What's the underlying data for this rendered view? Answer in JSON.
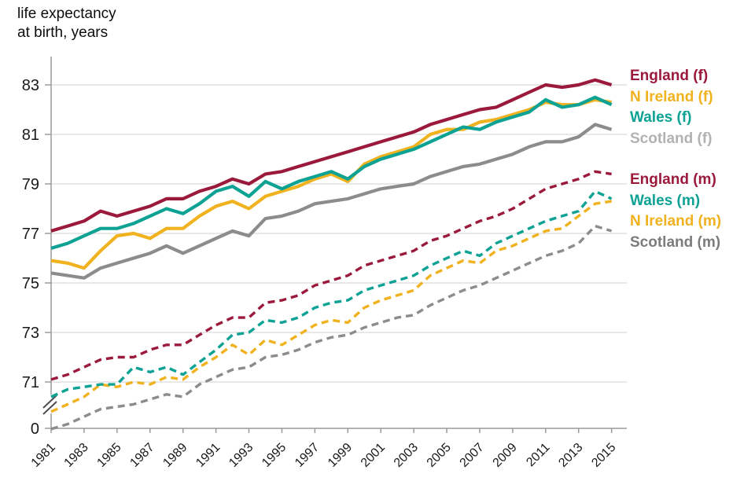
{
  "title": {
    "line1": "life expectancy",
    "line2": "at birth, years"
  },
  "colors": {
    "england": "#9B1A3C",
    "n_ireland": "#F0B21E",
    "wales": "#0DA294",
    "scotland_line": "#8C8C8C",
    "scotland_f_legend": "#B2B2B2",
    "scotland_m_legend": "#7C7C7C",
    "gridline": "#DBDBDB",
    "axis": "#9B9B9B",
    "text": "#1A1A1A",
    "background": "#FFFFFF"
  },
  "legend": {
    "female": [
      {
        "label": "England (f)",
        "color": "#9B1A3C"
      },
      {
        "label": "N Ireland (f)",
        "color": "#F0B21E"
      },
      {
        "label": "Wales (f)",
        "color": "#0DA294"
      },
      {
        "label": "Scotland (f)",
        "color": "#B2B2B2"
      }
    ],
    "male": [
      {
        "label": "England (m)",
        "color": "#9B1A3C"
      },
      {
        "label": "Wales (m)",
        "color": "#0DA294"
      },
      {
        "label": "N Ireland (m)",
        "color": "#F0B21E"
      },
      {
        "label": "Scotland (m)",
        "color": "#7C7C7C"
      }
    ]
  },
  "chart_data": {
    "type": "line",
    "title": "life expectancy at birth, years",
    "x": [
      1981,
      1982,
      1983,
      1984,
      1985,
      1986,
      1987,
      1988,
      1989,
      1990,
      1991,
      1992,
      1993,
      1994,
      1995,
      1996,
      1997,
      1998,
      1999,
      2000,
      2001,
      2002,
      2003,
      2004,
      2005,
      2006,
      2007,
      2008,
      2009,
      2010,
      2011,
      2012,
      2013,
      2014,
      2015
    ],
    "x_tick_labels": [
      "1981",
      "1983",
      "1985",
      "1987",
      "1989",
      "1991",
      "1993",
      "1995",
      "1997",
      "1999",
      "2001",
      "2003",
      "2005",
      "2007",
      "2009",
      "2011",
      "2013",
      "2015"
    ],
    "y_ticks": [
      83,
      81,
      79,
      77,
      75,
      73,
      71
    ],
    "y_origin_label": "0",
    "y_axis_break": true,
    "xlim": [
      1981,
      2015
    ],
    "ylim_displayed": [
      69.0,
      83.6
    ],
    "grid": "horizontal",
    "legend_position": "right",
    "series": [
      {
        "name": "Scotland (f)",
        "sex": "female",
        "style": "solid",
        "color": "#8C8C8C",
        "values": [
          75.4,
          75.3,
          75.2,
          75.6,
          75.8,
          76.0,
          76.2,
          76.5,
          76.2,
          76.5,
          76.8,
          77.1,
          76.9,
          77.6,
          77.7,
          77.9,
          78.2,
          78.3,
          78.4,
          78.6,
          78.8,
          78.9,
          79.0,
          79.3,
          79.5,
          79.7,
          79.8,
          80.0,
          80.2,
          80.5,
          80.7,
          80.7,
          80.9,
          81.4,
          81.2
        ]
      },
      {
        "name": "N Ireland (f)",
        "sex": "female",
        "style": "solid",
        "color": "#F0B21E",
        "values": [
          75.9,
          75.8,
          75.6,
          76.3,
          76.9,
          77.0,
          76.8,
          77.2,
          77.2,
          77.7,
          78.1,
          78.3,
          78.0,
          78.5,
          78.7,
          78.9,
          79.2,
          79.4,
          79.1,
          79.8,
          80.1,
          80.3,
          80.5,
          81.0,
          81.2,
          81.2,
          81.5,
          81.6,
          81.8,
          82.0,
          82.3,
          82.2,
          82.2,
          82.4,
          82.3
        ]
      },
      {
        "name": "Wales (f)",
        "sex": "female",
        "style": "solid",
        "color": "#0DA294",
        "values": [
          76.4,
          76.6,
          76.9,
          77.2,
          77.2,
          77.4,
          77.7,
          78.0,
          77.8,
          78.2,
          78.7,
          78.9,
          78.5,
          79.1,
          78.8,
          79.1,
          79.3,
          79.5,
          79.2,
          79.7,
          80.0,
          80.2,
          80.4,
          80.7,
          81.0,
          81.3,
          81.2,
          81.5,
          81.7,
          81.9,
          82.4,
          82.1,
          82.2,
          82.5,
          82.2
        ]
      },
      {
        "name": "England (f)",
        "sex": "female",
        "style": "solid",
        "color": "#9B1A3C",
        "values": [
          77.1,
          77.3,
          77.5,
          77.9,
          77.7,
          77.9,
          78.1,
          78.4,
          78.4,
          78.7,
          78.9,
          79.2,
          79.0,
          79.4,
          79.5,
          79.7,
          79.9,
          80.1,
          80.3,
          80.5,
          80.7,
          80.9,
          81.1,
          81.4,
          81.6,
          81.8,
          82.0,
          82.1,
          82.4,
          82.7,
          83.0,
          82.9,
          83.0,
          83.2,
          83.0
        ]
      },
      {
        "name": "Scotland (m)",
        "sex": "male",
        "style": "dashed",
        "color": "#8C8C8C",
        "values": [
          69.1,
          69.3,
          69.6,
          69.9,
          70.0,
          70.1,
          70.3,
          70.5,
          70.4,
          70.9,
          71.2,
          71.5,
          71.6,
          72.0,
          72.1,
          72.3,
          72.6,
          72.8,
          72.9,
          73.2,
          73.4,
          73.6,
          73.7,
          74.1,
          74.4,
          74.7,
          74.9,
          75.2,
          75.5,
          75.8,
          76.1,
          76.3,
          76.6,
          77.3,
          77.1
        ]
      },
      {
        "name": "N Ireland (m)",
        "sex": "male",
        "style": "dashed",
        "color": "#F0B21E",
        "values": [
          69.8,
          70.1,
          70.4,
          70.9,
          70.8,
          71.0,
          70.9,
          71.2,
          71.1,
          71.6,
          72.0,
          72.5,
          72.1,
          72.7,
          72.5,
          72.9,
          73.3,
          73.5,
          73.4,
          74.0,
          74.3,
          74.5,
          74.7,
          75.3,
          75.6,
          75.9,
          75.8,
          76.3,
          76.5,
          76.8,
          77.1,
          77.2,
          77.7,
          78.2,
          78.3
        ]
      },
      {
        "name": "Wales (m)",
        "sex": "male",
        "style": "dashed",
        "color": "#0DA294",
        "values": [
          70.4,
          70.7,
          70.8,
          70.9,
          70.9,
          71.6,
          71.4,
          71.6,
          71.3,
          71.8,
          72.3,
          72.9,
          73.0,
          73.5,
          73.4,
          73.6,
          74.0,
          74.2,
          74.3,
          74.7,
          74.9,
          75.1,
          75.3,
          75.7,
          76.0,
          76.3,
          76.1,
          76.6,
          76.9,
          77.2,
          77.5,
          77.7,
          77.9,
          78.7,
          78.4
        ]
      },
      {
        "name": "England (m)",
        "sex": "male",
        "style": "dashed",
        "color": "#9B1A3C",
        "values": [
          71.1,
          71.3,
          71.6,
          71.9,
          72.0,
          72.0,
          72.3,
          72.5,
          72.5,
          72.9,
          73.3,
          73.6,
          73.6,
          74.2,
          74.3,
          74.5,
          74.9,
          75.1,
          75.3,
          75.7,
          75.9,
          76.1,
          76.3,
          76.7,
          76.9,
          77.2,
          77.5,
          77.7,
          78.0,
          78.4,
          78.8,
          79.0,
          79.2,
          79.5,
          79.4
        ]
      }
    ]
  }
}
